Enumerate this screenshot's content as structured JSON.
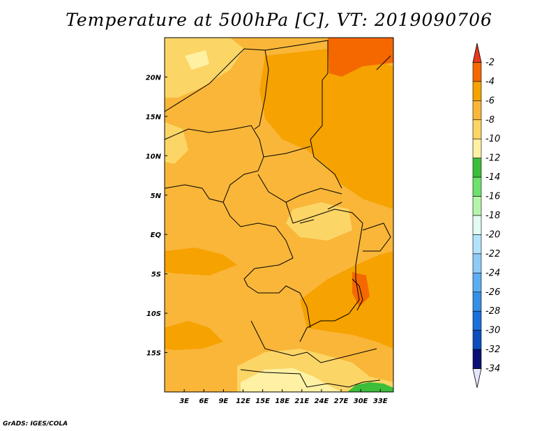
{
  "title": "Temperature at 500hPa [C], VT: 2019090706",
  "credit": "GrADS: IGES/COLA",
  "map": {
    "lon_range": [
      0,
      35
    ],
    "lat_range": [
      -20,
      25
    ],
    "x_ticks": [
      {
        "lon": 3,
        "label": "3E"
      },
      {
        "lon": 6,
        "label": "6E"
      },
      {
        "lon": 9,
        "label": "9E"
      },
      {
        "lon": 12,
        "label": "12E"
      },
      {
        "lon": 15,
        "label": "15E"
      },
      {
        "lon": 18,
        "label": "18E"
      },
      {
        "lon": 21,
        "label": "21E"
      },
      {
        "lon": 24,
        "label": "24E"
      },
      {
        "lon": 27,
        "label": "27E"
      },
      {
        "lon": 30,
        "label": "30E"
      },
      {
        "lon": 33,
        "label": "33E"
      }
    ],
    "y_ticks": [
      {
        "lat": 20,
        "label": "20N"
      },
      {
        "lat": 15,
        "label": "15N"
      },
      {
        "lat": 10,
        "label": "10N"
      },
      {
        "lat": 5,
        "label": "5N"
      },
      {
        "lat": 0,
        "label": "EQ"
      },
      {
        "lat": -5,
        "label": "5S"
      },
      {
        "lat": -10,
        "label": "10S"
      },
      {
        "lat": -15,
        "label": "15S"
      }
    ]
  },
  "colorbar": {
    "labels": [
      "-2",
      "-4",
      "-6",
      "-8",
      "-10",
      "-12",
      "-14",
      "-16",
      "-18",
      "-20",
      "-22",
      "-24",
      "-26",
      "-28",
      "-30",
      "-32",
      "-34"
    ],
    "colors": [
      "#e8391c",
      "#f56800",
      "#f6a200",
      "#f9b639",
      "#fcd567",
      "#fef1a3",
      "#3cbe3a",
      "#6ee26a",
      "#b5f5aa",
      "#e3fcf1",
      "#b3e3fb",
      "#8ecbf6",
      "#5daef0",
      "#3590e6",
      "#1a6fd8",
      "#0c4fbc",
      "#0a0f76"
    ]
  }
}
